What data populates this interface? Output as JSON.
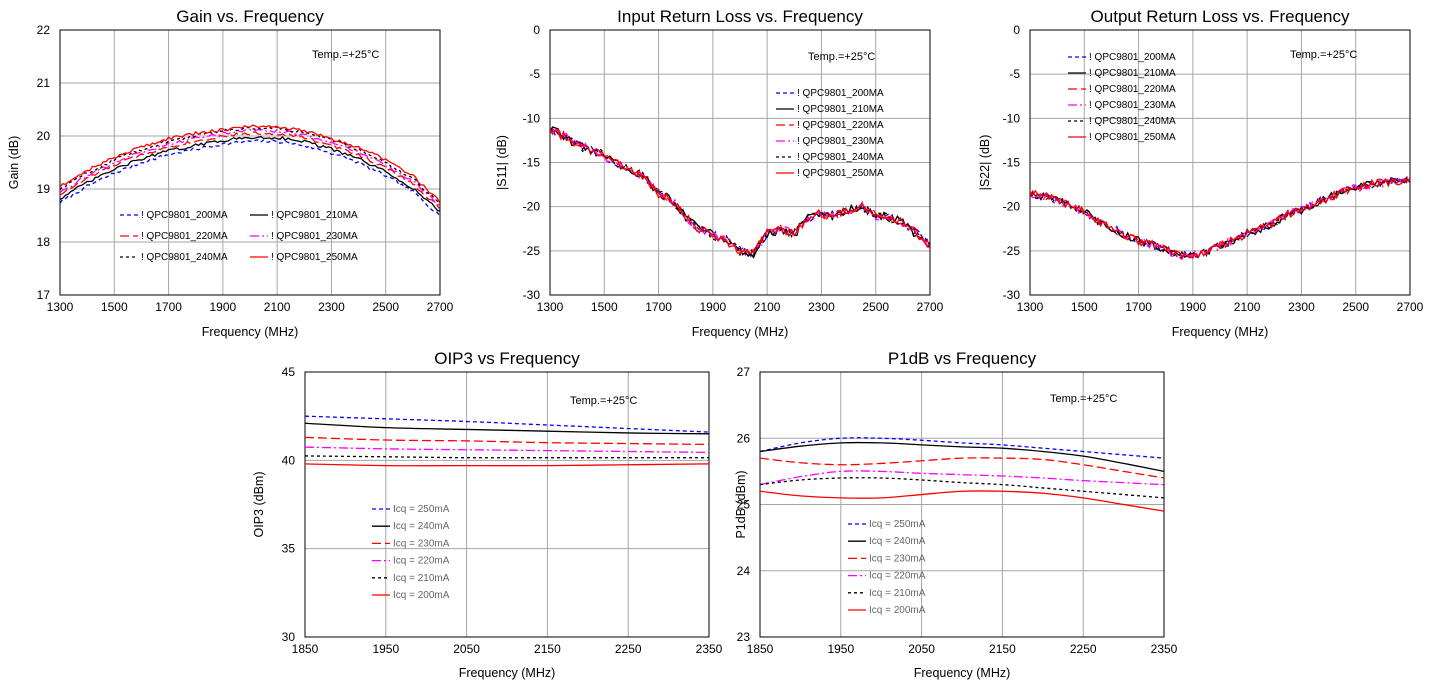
{
  "chart_data": [
    {
      "id": "gain",
      "type": "line",
      "title": "Gain vs. Frequency",
      "xlabel": "Frequency (MHz)",
      "ylabel": "Gain (dB)",
      "xlim": [
        1300,
        2700
      ],
      "ylim": [
        17,
        22
      ],
      "xticks": [
        1300,
        1500,
        1700,
        1900,
        2100,
        2300,
        2500,
        2700
      ],
      "yticks": [
        17,
        18,
        19,
        20,
        21,
        22
      ],
      "grid": true,
      "annotation": "Temp.=+25°C",
      "legend_position": "bottom-center",
      "x": [
        1300,
        1400,
        1500,
        1600,
        1700,
        1800,
        1900,
        2000,
        2100,
        2200,
        2300,
        2400,
        2500,
        2600,
        2700
      ],
      "series": [
        {
          "name": "! QPC9801_200MA",
          "color": "#0000ff",
          "dash": "4,3",
          "noise": 0.03,
          "values": [
            18.75,
            19.05,
            19.3,
            19.5,
            19.65,
            19.75,
            19.85,
            19.9,
            19.9,
            19.82,
            19.68,
            19.5,
            19.25,
            18.95,
            18.5
          ]
        },
        {
          "name": "! QPC9801_210MA",
          "color": "#000000",
          "dash": "",
          "noise": 0.03,
          "values": [
            18.82,
            19.12,
            19.37,
            19.57,
            19.72,
            19.82,
            19.92,
            19.97,
            19.97,
            19.9,
            19.75,
            19.57,
            19.32,
            19.02,
            18.57
          ]
        },
        {
          "name": "! QPC9801_220MA",
          "color": "#ff0000",
          "dash": "9,4",
          "noise": 0.03,
          "values": [
            18.9,
            19.2,
            19.45,
            19.65,
            19.8,
            19.9,
            20.0,
            20.05,
            20.05,
            19.97,
            19.82,
            19.65,
            19.4,
            19.1,
            18.63
          ]
        },
        {
          "name": "! QPC9801_230MA",
          "color": "#ff00ff",
          "dash": "9,3,2,3",
          "noise": 0.03,
          "values": [
            18.95,
            19.25,
            19.5,
            19.7,
            19.85,
            19.95,
            20.05,
            20.1,
            20.1,
            20.02,
            19.87,
            19.7,
            19.45,
            19.15,
            18.68
          ]
        },
        {
          "name": "! QPC9801_240MA",
          "color": "#000000",
          "dash": "3,3",
          "noise": 0.03,
          "values": [
            19.0,
            19.3,
            19.55,
            19.75,
            19.9,
            20.0,
            20.1,
            20.15,
            20.15,
            20.07,
            19.92,
            19.75,
            19.5,
            19.2,
            18.72
          ]
        },
        {
          "name": "! QPC9801_250MA",
          "color": "#ff0000",
          "dash": "",
          "noise": 0.03,
          "values": [
            19.05,
            19.35,
            19.6,
            19.8,
            19.95,
            20.05,
            20.12,
            20.18,
            20.17,
            20.1,
            19.95,
            19.78,
            19.55,
            19.25,
            18.75
          ]
        }
      ]
    },
    {
      "id": "s11",
      "type": "line",
      "title": "Input Return Loss vs. Frequency",
      "xlabel": "Frequency (MHz)",
      "ylabel": "|S11| (dB)",
      "xlim": [
        1300,
        2700
      ],
      "ylim": [
        -30,
        0
      ],
      "xticks": [
        1300,
        1500,
        1700,
        1900,
        2100,
        2300,
        2500,
        2700
      ],
      "yticks": [
        -30,
        -25,
        -20,
        -15,
        -10,
        -5,
        0
      ],
      "grid": true,
      "annotation": "Temp.=+25°C",
      "legend_position": "right",
      "x": [
        1300,
        1350,
        1400,
        1450,
        1500,
        1550,
        1600,
        1650,
        1700,
        1750,
        1800,
        1850,
        1900,
        1950,
        2000,
        2050,
        2100,
        2150,
        2200,
        2250,
        2300,
        2350,
        2400,
        2450,
        2500,
        2550,
        2600,
        2650,
        2700
      ],
      "series": [
        {
          "name": "! QPC9801_200MA",
          "color": "#0000ff",
          "dash": "4,3",
          "noise": 0.5,
          "values": [
            -11.2,
            -12.0,
            -13.0,
            -13.6,
            -14.2,
            -15.2,
            -15.8,
            -16.7,
            -18.5,
            -19.2,
            -21.2,
            -22.5,
            -23.2,
            -23.8,
            -25.0,
            -25.2,
            -23.0,
            -22.6,
            -23.0,
            -21.2,
            -20.8,
            -21.0,
            -20.4,
            -20.0,
            -21.0,
            -21.2,
            -21.8,
            -23.0,
            -24.5
          ]
        },
        {
          "name": "! QPC9801_210MA",
          "color": "#000000",
          "dash": "",
          "noise": 0.5,
          "values": [
            -11.2,
            -12.0,
            -13.0,
            -13.6,
            -14.2,
            -15.2,
            -15.8,
            -16.7,
            -18.5,
            -19.2,
            -21.2,
            -22.5,
            -23.2,
            -23.8,
            -25.0,
            -25.4,
            -23.0,
            -22.6,
            -23.2,
            -21.2,
            -20.8,
            -21.0,
            -20.4,
            -20.0,
            -21.0,
            -21.2,
            -21.8,
            -23.2,
            -24.8
          ]
        },
        {
          "name": "! QPC9801_220MA",
          "color": "#ff0000",
          "dash": "9,4",
          "noise": 0.5,
          "values": [
            -11.2,
            -12.0,
            -13.0,
            -13.6,
            -14.2,
            -15.2,
            -15.8,
            -16.7,
            -18.5,
            -19.2,
            -21.2,
            -22.5,
            -23.2,
            -23.8,
            -25.0,
            -25.2,
            -23.0,
            -22.6,
            -23.0,
            -21.2,
            -20.8,
            -21.0,
            -20.4,
            -20.0,
            -21.0,
            -21.2,
            -21.8,
            -23.0,
            -24.5
          ]
        },
        {
          "name": "! QPC9801_230MA",
          "color": "#ff00ff",
          "dash": "9,3,2,3",
          "noise": 0.5,
          "values": [
            -11.2,
            -12.0,
            -13.0,
            -13.6,
            -14.2,
            -15.2,
            -15.8,
            -16.7,
            -18.5,
            -19.2,
            -21.2,
            -22.5,
            -23.2,
            -23.8,
            -25.0,
            -25.2,
            -23.0,
            -22.6,
            -23.0,
            -21.2,
            -20.8,
            -21.0,
            -20.4,
            -20.0,
            -21.0,
            -21.2,
            -21.8,
            -23.0,
            -24.5
          ]
        },
        {
          "name": "! QPC9801_240MA",
          "color": "#000000",
          "dash": "3,3",
          "noise": 0.5,
          "values": [
            -11.2,
            -12.0,
            -13.0,
            -13.6,
            -14.2,
            -15.2,
            -15.8,
            -16.7,
            -18.5,
            -19.2,
            -21.2,
            -22.5,
            -23.2,
            -23.8,
            -25.0,
            -25.2,
            -23.0,
            -22.6,
            -23.0,
            -21.2,
            -20.8,
            -21.0,
            -20.4,
            -20.0,
            -21.0,
            -21.2,
            -21.8,
            -23.0,
            -24.5
          ]
        },
        {
          "name": "! QPC9801_250MA",
          "color": "#ff0000",
          "dash": "",
          "noise": 0.5,
          "values": [
            -11.2,
            -12.0,
            -13.0,
            -13.6,
            -14.2,
            -15.2,
            -15.8,
            -16.7,
            -18.5,
            -19.2,
            -21.2,
            -22.5,
            -23.2,
            -23.8,
            -25.6,
            -25.0,
            -23.0,
            -22.6,
            -23.0,
            -21.2,
            -20.8,
            -21.0,
            -20.4,
            -20.0,
            -21.0,
            -21.2,
            -21.8,
            -23.0,
            -24.5
          ]
        }
      ]
    },
    {
      "id": "s22",
      "type": "line",
      "title": "Output Return Loss vs. Frequency",
      "xlabel": "Frequency (MHz)",
      "ylabel": "|S22| (dB)",
      "xlim": [
        1300,
        2700
      ],
      "ylim": [
        -30,
        0
      ],
      "xticks": [
        1300,
        1500,
        1700,
        1900,
        2100,
        2300,
        2500,
        2700
      ],
      "yticks": [
        -30,
        -25,
        -20,
        -15,
        -10,
        -5,
        0
      ],
      "grid": true,
      "annotation": "Temp.=+25°C",
      "legend_position": "top-left",
      "x": [
        1300,
        1350,
        1400,
        1450,
        1500,
        1550,
        1600,
        1650,
        1700,
        1750,
        1800,
        1850,
        1900,
        1950,
        2000,
        2050,
        2100,
        2150,
        2200,
        2250,
        2300,
        2350,
        2400,
        2450,
        2500,
        2550,
        2600,
        2650,
        2700
      ],
      "series": [
        {
          "name": "! QPC9801_200MA",
          "color": "#0000ff",
          "dash": "4,3",
          "noise": 0.45,
          "values": [
            -18.5,
            -18.8,
            -19.3,
            -19.9,
            -20.6,
            -21.6,
            -22.4,
            -23.2,
            -23.9,
            -24.3,
            -24.8,
            -25.6,
            -25.4,
            -25.2,
            -24.4,
            -23.8,
            -23.0,
            -22.5,
            -21.8,
            -20.8,
            -20.4,
            -19.6,
            -19.0,
            -18.3,
            -17.9,
            -17.5,
            -17.3,
            -17.1,
            -17.0
          ]
        },
        {
          "name": "! QPC9801_210MA",
          "color": "#000000",
          "dash": "",
          "noise": 0.45,
          "values": [
            -18.5,
            -18.8,
            -19.3,
            -19.9,
            -20.6,
            -21.6,
            -22.4,
            -23.2,
            -23.9,
            -24.3,
            -24.8,
            -25.6,
            -25.4,
            -25.2,
            -24.4,
            -23.8,
            -23.0,
            -22.5,
            -21.8,
            -20.8,
            -20.4,
            -19.6,
            -19.0,
            -18.3,
            -17.9,
            -17.5,
            -17.3,
            -17.1,
            -17.0
          ]
        },
        {
          "name": "! QPC9801_220MA",
          "color": "#ff0000",
          "dash": "9,4",
          "noise": 0.45,
          "values": [
            -18.5,
            -18.8,
            -19.3,
            -19.9,
            -20.6,
            -21.6,
            -22.4,
            -23.2,
            -23.9,
            -24.3,
            -24.8,
            -25.6,
            -25.4,
            -25.2,
            -24.4,
            -23.8,
            -23.0,
            -22.5,
            -21.8,
            -20.8,
            -20.4,
            -19.6,
            -19.0,
            -18.3,
            -17.9,
            -17.5,
            -17.3,
            -17.1,
            -17.0
          ]
        },
        {
          "name": "! QPC9801_230MA",
          "color": "#ff00ff",
          "dash": "9,3,2,3",
          "noise": 0.45,
          "values": [
            -18.5,
            -18.8,
            -19.3,
            -19.9,
            -20.6,
            -21.6,
            -22.4,
            -23.2,
            -23.9,
            -24.3,
            -24.8,
            -25.6,
            -25.4,
            -25.2,
            -24.4,
            -23.8,
            -23.0,
            -22.5,
            -21.8,
            -20.8,
            -20.4,
            -19.6,
            -19.0,
            -18.3,
            -17.9,
            -17.5,
            -17.3,
            -17.1,
            -17.0
          ]
        },
        {
          "name": "! QPC9801_240MA",
          "color": "#000000",
          "dash": "3,3",
          "noise": 0.45,
          "values": [
            -18.5,
            -18.8,
            -19.3,
            -19.9,
            -20.6,
            -21.6,
            -22.4,
            -23.2,
            -23.9,
            -24.3,
            -24.8,
            -25.6,
            -25.4,
            -25.2,
            -24.4,
            -23.8,
            -23.0,
            -22.5,
            -21.8,
            -20.8,
            -20.4,
            -19.6,
            -19.0,
            -18.3,
            -17.9,
            -17.5,
            -17.3,
            -17.1,
            -17.0
          ]
        },
        {
          "name": "! QPC9801_250MA",
          "color": "#ff0000",
          "dash": "",
          "noise": 0.45,
          "values": [
            -18.5,
            -18.8,
            -19.3,
            -19.9,
            -20.6,
            -21.6,
            -22.4,
            -23.2,
            -23.9,
            -24.3,
            -24.8,
            -25.6,
            -25.4,
            -25.2,
            -24.4,
            -23.8,
            -23.0,
            -22.5,
            -21.8,
            -20.8,
            -20.4,
            -19.6,
            -19.0,
            -18.3,
            -17.9,
            -17.5,
            -17.3,
            -17.1,
            -17.0
          ]
        }
      ]
    },
    {
      "id": "oip3",
      "type": "line",
      "title": "OIP3 vs Frequency",
      "xlabel": "Frequency (MHz)",
      "ylabel": "OIP3 (dBm)",
      "xlim": [
        1850,
        2350
      ],
      "ylim": [
        30,
        45
      ],
      "xticks": [
        1850,
        1950,
        2050,
        2150,
        2250,
        2350
      ],
      "yticks": [
        30,
        35,
        40,
        45
      ],
      "grid": true,
      "annotation": "Temp.=+25°C",
      "legend_position": "bottom-left",
      "x": [
        1850,
        1950,
        2050,
        2150,
        2250,
        2350
      ],
      "series": [
        {
          "name": "Icq = 250mA",
          "color": "#0000ff",
          "dash": "4,3",
          "values": [
            42.5,
            42.35,
            42.2,
            42.0,
            41.8,
            41.6
          ]
        },
        {
          "name": "Icq = 240mA",
          "color": "#000000",
          "dash": "",
          "values": [
            42.1,
            41.85,
            41.75,
            41.65,
            41.55,
            41.5
          ]
        },
        {
          "name": "Icq = 230mA",
          "color": "#ff0000",
          "dash": "9,4",
          "values": [
            41.3,
            41.15,
            41.1,
            41.0,
            40.95,
            40.9
          ]
        },
        {
          "name": "Icq = 220mA",
          "color": "#ff00ff",
          "dash": "9,3,2,3",
          "values": [
            40.75,
            40.65,
            40.6,
            40.55,
            40.5,
            40.45
          ]
        },
        {
          "name": "Icq = 210mA",
          "color": "#000000",
          "dash": "3,3",
          "values": [
            40.25,
            40.2,
            40.15,
            40.15,
            40.15,
            40.15
          ]
        },
        {
          "name": "Icq = 200mA",
          "color": "#ff0000",
          "dash": "",
          "values": [
            39.8,
            39.7,
            39.7,
            39.7,
            39.75,
            39.8
          ]
        }
      ]
    },
    {
      "id": "p1db",
      "type": "line",
      "title": "P1dB vs Frequency",
      "xlabel": "Frequency (MHz)",
      "ylabel": "P1dB (dBm)",
      "xlim": [
        1850,
        2350
      ],
      "ylim": [
        23,
        27
      ],
      "xticks": [
        1850,
        1950,
        2050,
        2150,
        2250,
        2350
      ],
      "yticks": [
        23,
        24,
        25,
        26,
        27
      ],
      "grid": true,
      "annotation": "Temp.=+25°C",
      "legend_position": "bottom-left",
      "x": [
        1850,
        1900,
        1950,
        2000,
        2050,
        2100,
        2150,
        2200,
        2250,
        2300,
        2350
      ],
      "series": [
        {
          "name": "Icq = 250mA",
          "color": "#0000ff",
          "dash": "4,3",
          "values": [
            25.8,
            25.93,
            26.0,
            26.0,
            25.97,
            25.93,
            25.9,
            25.85,
            25.8,
            25.75,
            25.7
          ]
        },
        {
          "name": "Icq = 240mA",
          "color": "#000000",
          "dash": "",
          "values": [
            25.8,
            25.88,
            25.93,
            25.93,
            25.9,
            25.87,
            25.85,
            25.8,
            25.73,
            25.62,
            25.5
          ]
        },
        {
          "name": "Icq = 230mA",
          "color": "#ff0000",
          "dash": "9,4",
          "values": [
            25.7,
            25.63,
            25.6,
            25.62,
            25.66,
            25.7,
            25.7,
            25.68,
            25.6,
            25.5,
            25.4
          ]
        },
        {
          "name": "Icq = 220mA",
          "color": "#ff00ff",
          "dash": "9,3,2,3",
          "values": [
            25.3,
            25.42,
            25.5,
            25.5,
            25.47,
            25.45,
            25.43,
            25.4,
            25.36,
            25.33,
            25.3
          ]
        },
        {
          "name": "Icq = 210mA",
          "color": "#000000",
          "dash": "3,3",
          "values": [
            25.3,
            25.37,
            25.4,
            25.4,
            25.37,
            25.33,
            25.3,
            25.25,
            25.2,
            25.15,
            25.1
          ]
        },
        {
          "name": "Icq = 200mA",
          "color": "#ff0000",
          "dash": "",
          "values": [
            25.2,
            25.13,
            25.1,
            25.1,
            25.15,
            25.2,
            25.2,
            25.17,
            25.1,
            25.0,
            24.9
          ]
        }
      ]
    }
  ]
}
